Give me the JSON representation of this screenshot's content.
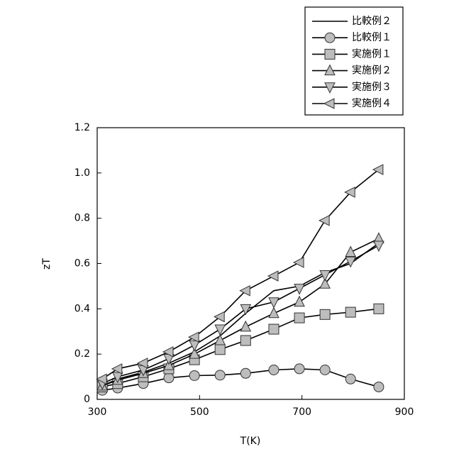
{
  "chart_data": {
    "type": "line",
    "x_label": "T(K)",
    "y_label": "zT",
    "x": [
      310,
      340,
      390,
      440,
      490,
      540,
      590,
      645,
      695,
      745,
      795,
      850
    ],
    "series": [
      {
        "name": "比較例２",
        "color": "#000000",
        "values": [
          0.06,
          0.09,
          0.12,
          0.16,
          0.21,
          0.28,
          0.38,
          0.48,
          0.5,
          0.56,
          0.6,
          0.69
        ]
      },
      {
        "name": "比較例１",
        "color": "#000000",
        "marker": "circle",
        "values": [
          0.04,
          0.05,
          0.07,
          0.095,
          0.105,
          0.107,
          0.115,
          0.13,
          0.135,
          0.13,
          0.09,
          0.055
        ]
      },
      {
        "name": "実施例１",
        "color": "#000000",
        "marker": "square",
        "values": [
          0.055,
          0.07,
          0.1,
          0.135,
          0.175,
          0.22,
          0.26,
          0.31,
          0.36,
          0.375,
          0.385,
          0.4
        ]
      },
      {
        "name": "実施例２",
        "color": "#000000",
        "marker": "triangle-up",
        "values": [
          0.06,
          0.085,
          0.115,
          0.15,
          0.2,
          0.26,
          0.32,
          0.38,
          0.43,
          0.51,
          0.65,
          0.71
        ]
      },
      {
        "name": "実施例３",
        "color": "#000000",
        "marker": "triangle-down",
        "values": [
          0.07,
          0.1,
          0.13,
          0.18,
          0.24,
          0.31,
          0.4,
          0.43,
          0.49,
          0.55,
          0.61,
          0.68
        ]
      },
      {
        "name": "実施例４",
        "color": "#000000",
        "marker": "triangle-left",
        "values": [
          0.09,
          0.135,
          0.16,
          0.21,
          0.275,
          0.365,
          0.48,
          0.545,
          0.605,
          0.79,
          0.915,
          1.015
        ]
      }
    ],
    "marker_fill": "#bdbdbd",
    "xlim": [
      300,
      900
    ],
    "xticks": [
      300,
      500,
      700,
      900
    ],
    "ylim": [
      0,
      1.2
    ],
    "yticks": [
      0,
      0.2,
      0.4,
      0.6,
      0.8,
      {
        "value": 1.0,
        "label": "1.0"
      },
      1.2
    ],
    "legend": "top-right",
    "grid": false
  }
}
